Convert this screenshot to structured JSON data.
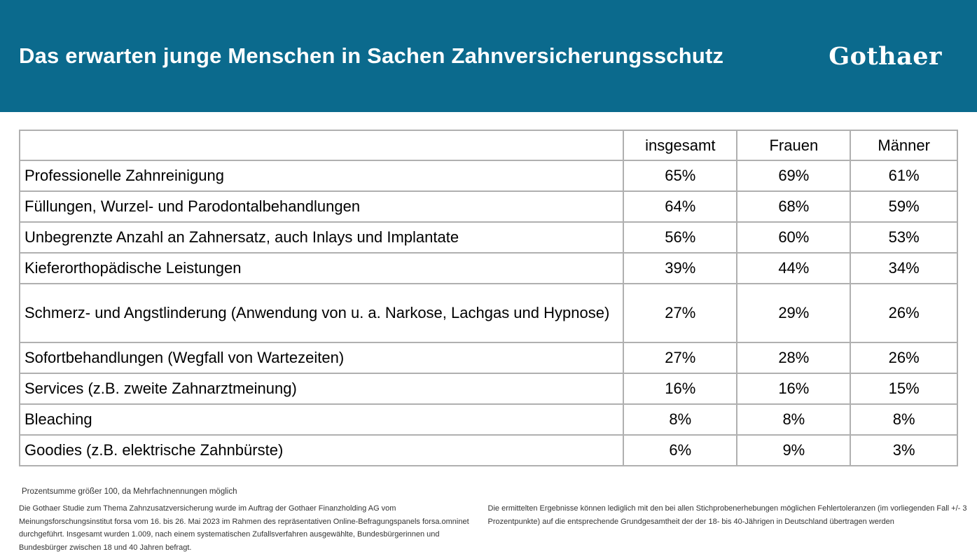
{
  "header": {
    "title": "Das erwarten junge Menschen in Sachen Zahnversicherungsschutz",
    "logo": "Gothaer",
    "background_color": "#0b6a8d",
    "text_color": "#ffffff"
  },
  "table": {
    "columns": [
      "insgesamt",
      "Frauen",
      "Männer"
    ],
    "border_color": "#b0b0b0",
    "rows": [
      {
        "label": "Professionelle Zahnreinigung",
        "values": [
          "65%",
          "69%",
          "61%"
        ],
        "tall": false
      },
      {
        "label": "Füllungen, Wurzel- und Parodontalbehandlungen",
        "values": [
          "64%",
          "68%",
          "59%"
        ],
        "tall": false
      },
      {
        "label": "Unbegrenzte Anzahl an Zahnersatz, auch Inlays und Implantate",
        "values": [
          "56%",
          "60%",
          "53%"
        ],
        "tall": false
      },
      {
        "label": "Kieferorthopädische Leistungen",
        "values": [
          "39%",
          "44%",
          "34%"
        ],
        "tall": false
      },
      {
        "label": "Schmerz- und Angstlinderung (Anwendung von u. a. Narkose, Lachgas und Hypnose)",
        "values": [
          "27%",
          "29%",
          "26%"
        ],
        "tall": true
      },
      {
        "label": "Sofortbehandlungen (Wegfall von Wartezeiten)",
        "values": [
          "27%",
          "28%",
          "26%"
        ],
        "tall": false
      },
      {
        "label": "Services (z.B. zweite Zahnarztmeinung)",
        "values": [
          "16%",
          "16%",
          "15%"
        ],
        "tall": false
      },
      {
        "label": "Bleaching",
        "values": [
          "8%",
          "8%",
          "8%"
        ],
        "tall": false
      },
      {
        "label": "Goodies (z.B. elektrische Zahnbürste)",
        "values": [
          "6%",
          "9%",
          "3%"
        ],
        "tall": false
      }
    ]
  },
  "footnotes": {
    "note": "Prozentsumme größer 100, da Mehrfachnennungen möglich",
    "left": "Die Gothaer Studie zum Thema Zahnzusatzversicherung wurde im Auftrag der Gothaer Finanzholding AG vom Meinungsforschungsinstitut forsa vom 16. bis  26. Mai 2023 im Rahmen des repräsentativen Online-Befragungspanels forsa.omninet durchgeführt. Insgesamt wurden 1.009, nach einem systematischen Zufallsverfahren ausgewählte, Bundesbürgerinnen und Bundesbürger zwischen 18 und 40 Jahren befragt.",
    "right": "Die ermittelten Ergebnisse können lediglich mit den bei allen Stichprobenerhebungen möglichen Fehlertoleranzen (im vorliegenden Fall +/- 3 Prozentpunkte) auf die entsprechende Grundgesamtheit der der 18- bis 40-Jährigen in Deutschland übertragen werden"
  },
  "chart_data": {
    "type": "table",
    "title": "Das erwarten junge Menschen in Sachen Zahnversicherungsschutz",
    "unit": "%",
    "categories": [
      "Professionelle Zahnreinigung",
      "Füllungen, Wurzel- und Parodontalbehandlungen",
      "Unbegrenzte Anzahl an Zahnersatz, auch Inlays und Implantate",
      "Kieferorthopädische Leistungen",
      "Schmerz- und Angstlinderung (Anwendung von u. a. Narkose, Lachgas und Hypnose)",
      "Sofortbehandlungen (Wegfall von Wartezeiten)",
      "Services (z.B. zweite Zahnarztmeinung)",
      "Bleaching",
      "Goodies (z.B. elektrische Zahnbürste)"
    ],
    "series": [
      {
        "name": "insgesamt",
        "values": [
          65,
          64,
          56,
          39,
          27,
          27,
          16,
          8,
          6
        ]
      },
      {
        "name": "Frauen",
        "values": [
          69,
          68,
          60,
          44,
          29,
          28,
          16,
          8,
          9
        ]
      },
      {
        "name": "Männer",
        "values": [
          61,
          59,
          53,
          34,
          26,
          26,
          15,
          8,
          3
        ]
      }
    ]
  }
}
